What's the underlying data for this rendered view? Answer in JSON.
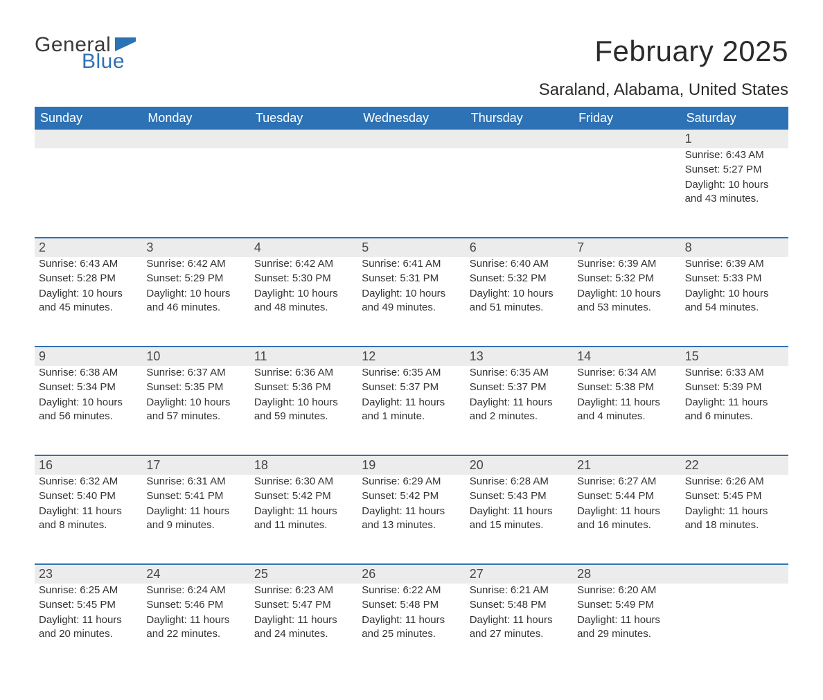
{
  "logo": {
    "text_general": "General",
    "text_blue": "Blue",
    "flag_color": "#2d72b5",
    "text_dark": "#3a3a3a"
  },
  "title": "February 2025",
  "location": "Saraland, Alabama, United States",
  "colors": {
    "header_bg": "#2d72b5",
    "header_text": "#ffffff",
    "strip_bg": "#ececec",
    "strip_border": "#2d72b5",
    "daynum_text": "#464646",
    "body_text": "#333333",
    "title_text": "#2b2b2b",
    "background": "#ffffff"
  },
  "typography": {
    "title_fontsize": 42,
    "location_fontsize": 24,
    "dow_fontsize": 18,
    "daynum_fontsize": 18,
    "body_fontsize": 15
  },
  "layout": {
    "columns": 7,
    "cell_min_height": 128
  },
  "days_of_week": [
    "Sunday",
    "Monday",
    "Tuesday",
    "Wednesday",
    "Thursday",
    "Friday",
    "Saturday"
  ],
  "weeks": [
    [
      null,
      null,
      null,
      null,
      null,
      null,
      {
        "n": "1",
        "sunrise": "Sunrise: 6:43 AM",
        "sunset": "Sunset: 5:27 PM",
        "daylight": "Daylight: 10 hours and 43 minutes."
      }
    ],
    [
      {
        "n": "2",
        "sunrise": "Sunrise: 6:43 AM",
        "sunset": "Sunset: 5:28 PM",
        "daylight": "Daylight: 10 hours and 45 minutes."
      },
      {
        "n": "3",
        "sunrise": "Sunrise: 6:42 AM",
        "sunset": "Sunset: 5:29 PM",
        "daylight": "Daylight: 10 hours and 46 minutes."
      },
      {
        "n": "4",
        "sunrise": "Sunrise: 6:42 AM",
        "sunset": "Sunset: 5:30 PM",
        "daylight": "Daylight: 10 hours and 48 minutes."
      },
      {
        "n": "5",
        "sunrise": "Sunrise: 6:41 AM",
        "sunset": "Sunset: 5:31 PM",
        "daylight": "Daylight: 10 hours and 49 minutes."
      },
      {
        "n": "6",
        "sunrise": "Sunrise: 6:40 AM",
        "sunset": "Sunset: 5:32 PM",
        "daylight": "Daylight: 10 hours and 51 minutes."
      },
      {
        "n": "7",
        "sunrise": "Sunrise: 6:39 AM",
        "sunset": "Sunset: 5:32 PM",
        "daylight": "Daylight: 10 hours and 53 minutes."
      },
      {
        "n": "8",
        "sunrise": "Sunrise: 6:39 AM",
        "sunset": "Sunset: 5:33 PM",
        "daylight": "Daylight: 10 hours and 54 minutes."
      }
    ],
    [
      {
        "n": "9",
        "sunrise": "Sunrise: 6:38 AM",
        "sunset": "Sunset: 5:34 PM",
        "daylight": "Daylight: 10 hours and 56 minutes."
      },
      {
        "n": "10",
        "sunrise": "Sunrise: 6:37 AM",
        "sunset": "Sunset: 5:35 PM",
        "daylight": "Daylight: 10 hours and 57 minutes."
      },
      {
        "n": "11",
        "sunrise": "Sunrise: 6:36 AM",
        "sunset": "Sunset: 5:36 PM",
        "daylight": "Daylight: 10 hours and 59 minutes."
      },
      {
        "n": "12",
        "sunrise": "Sunrise: 6:35 AM",
        "sunset": "Sunset: 5:37 PM",
        "daylight": "Daylight: 11 hours and 1 minute."
      },
      {
        "n": "13",
        "sunrise": "Sunrise: 6:35 AM",
        "sunset": "Sunset: 5:37 PM",
        "daylight": "Daylight: 11 hours and 2 minutes."
      },
      {
        "n": "14",
        "sunrise": "Sunrise: 6:34 AM",
        "sunset": "Sunset: 5:38 PM",
        "daylight": "Daylight: 11 hours and 4 minutes."
      },
      {
        "n": "15",
        "sunrise": "Sunrise: 6:33 AM",
        "sunset": "Sunset: 5:39 PM",
        "daylight": "Daylight: 11 hours and 6 minutes."
      }
    ],
    [
      {
        "n": "16",
        "sunrise": "Sunrise: 6:32 AM",
        "sunset": "Sunset: 5:40 PM",
        "daylight": "Daylight: 11 hours and 8 minutes."
      },
      {
        "n": "17",
        "sunrise": "Sunrise: 6:31 AM",
        "sunset": "Sunset: 5:41 PM",
        "daylight": "Daylight: 11 hours and 9 minutes."
      },
      {
        "n": "18",
        "sunrise": "Sunrise: 6:30 AM",
        "sunset": "Sunset: 5:42 PM",
        "daylight": "Daylight: 11 hours and 11 minutes."
      },
      {
        "n": "19",
        "sunrise": "Sunrise: 6:29 AM",
        "sunset": "Sunset: 5:42 PM",
        "daylight": "Daylight: 11 hours and 13 minutes."
      },
      {
        "n": "20",
        "sunrise": "Sunrise: 6:28 AM",
        "sunset": "Sunset: 5:43 PM",
        "daylight": "Daylight: 11 hours and 15 minutes."
      },
      {
        "n": "21",
        "sunrise": "Sunrise: 6:27 AM",
        "sunset": "Sunset: 5:44 PM",
        "daylight": "Daylight: 11 hours and 16 minutes."
      },
      {
        "n": "22",
        "sunrise": "Sunrise: 6:26 AM",
        "sunset": "Sunset: 5:45 PM",
        "daylight": "Daylight: 11 hours and 18 minutes."
      }
    ],
    [
      {
        "n": "23",
        "sunrise": "Sunrise: 6:25 AM",
        "sunset": "Sunset: 5:45 PM",
        "daylight": "Daylight: 11 hours and 20 minutes."
      },
      {
        "n": "24",
        "sunrise": "Sunrise: 6:24 AM",
        "sunset": "Sunset: 5:46 PM",
        "daylight": "Daylight: 11 hours and 22 minutes."
      },
      {
        "n": "25",
        "sunrise": "Sunrise: 6:23 AM",
        "sunset": "Sunset: 5:47 PM",
        "daylight": "Daylight: 11 hours and 24 minutes."
      },
      {
        "n": "26",
        "sunrise": "Sunrise: 6:22 AM",
        "sunset": "Sunset: 5:48 PM",
        "daylight": "Daylight: 11 hours and 25 minutes."
      },
      {
        "n": "27",
        "sunrise": "Sunrise: 6:21 AM",
        "sunset": "Sunset: 5:48 PM",
        "daylight": "Daylight: 11 hours and 27 minutes."
      },
      {
        "n": "28",
        "sunrise": "Sunrise: 6:20 AM",
        "sunset": "Sunset: 5:49 PM",
        "daylight": "Daylight: 11 hours and 29 minutes."
      },
      null
    ]
  ]
}
